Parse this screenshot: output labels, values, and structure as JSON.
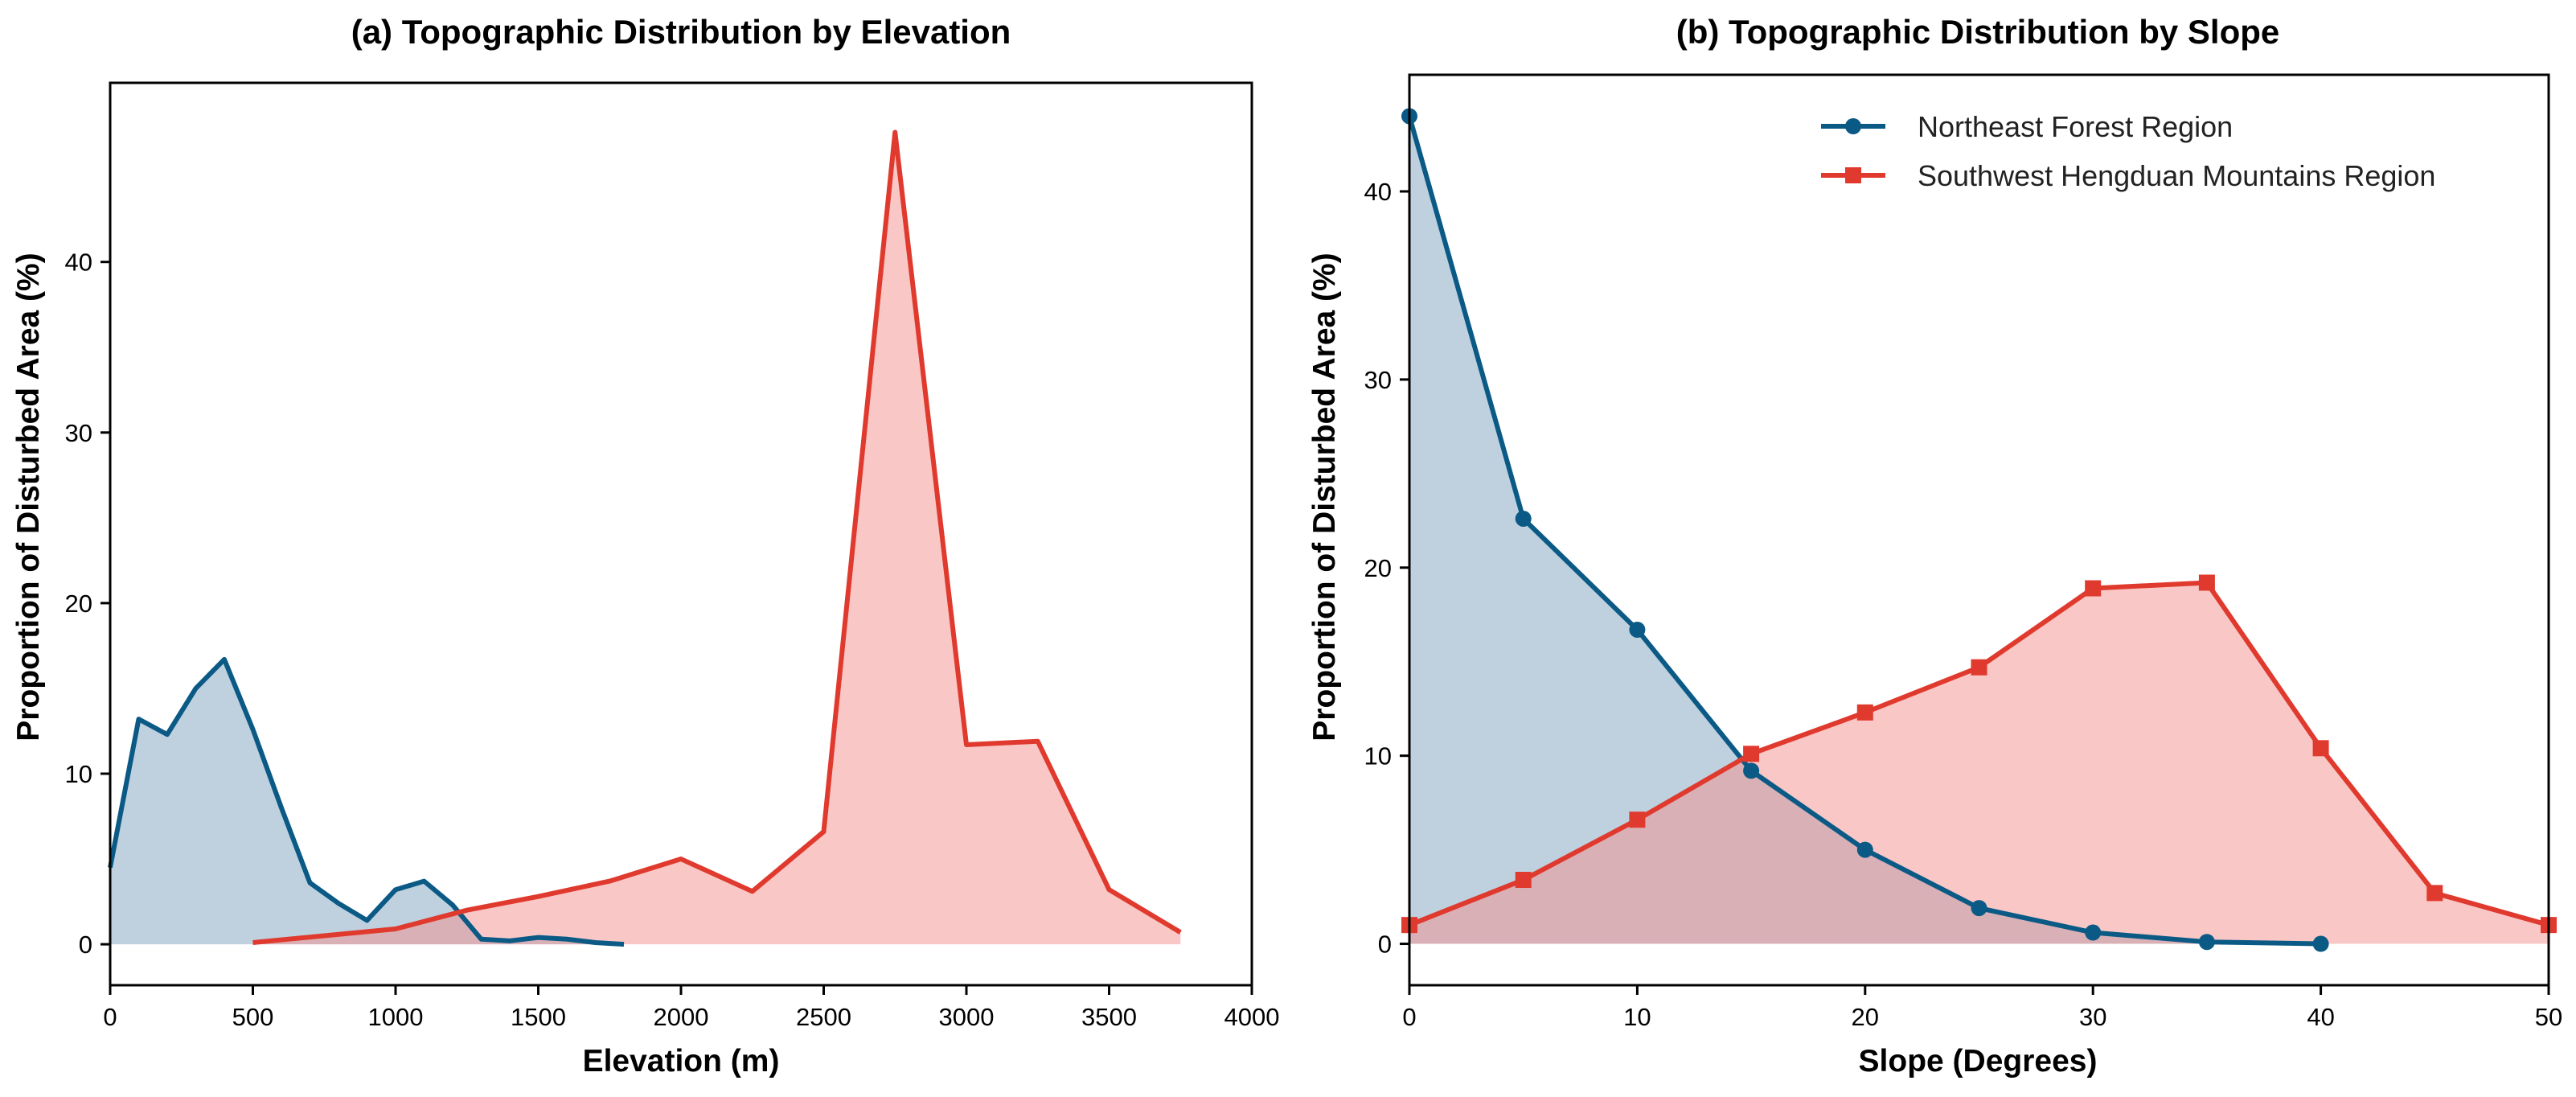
{
  "colors": {
    "northeast": "#0b5a86",
    "southwest": "#e03a2e",
    "northeast_fill": "#7fa4bf",
    "southwest_fill": "#f4908d"
  },
  "chart_data": [
    {
      "type": "area",
      "title": "(a) Topographic Distribution by Elevation",
      "xlabel": "Elevation (m)",
      "ylabel": "Proportion of Disturbed Area (%)",
      "xlim": [
        0,
        4000
      ],
      "ylim": [
        -2.4,
        50.5
      ],
      "xticks": [
        0,
        500,
        1000,
        1500,
        2000,
        2500,
        3000,
        3500,
        4000
      ],
      "yticks": [
        0,
        10,
        20,
        30,
        40
      ],
      "grid": false,
      "series": [
        {
          "name": "Northeast Forest Region",
          "color": "#0b5a86",
          "fill": "#7fa4bf",
          "marker": "none",
          "x": [
            0,
            100,
            200,
            300,
            400,
            500,
            600,
            700,
            800,
            900,
            1000,
            1100,
            1200,
            1300,
            1400,
            1500,
            1600,
            1700,
            1800
          ],
          "y": [
            4.5,
            13.2,
            12.3,
            15.0,
            16.7,
            12.6,
            8.0,
            3.6,
            2.4,
            1.4,
            3.2,
            3.7,
            2.3,
            0.3,
            0.2,
            0.4,
            0.3,
            0.1,
            0.0
          ]
        },
        {
          "name": "Southwest Hengduan Mountains Region",
          "color": "#e03a2e",
          "fill": "#f4908d",
          "marker": "none",
          "x": [
            500,
            750,
            1000,
            1250,
            1500,
            1750,
            2000,
            2250,
            2500,
            2750,
            3000,
            3250,
            3500,
            3750
          ],
          "y": [
            0.1,
            0.5,
            0.9,
            2.0,
            2.8,
            3.7,
            5.0,
            3.1,
            6.6,
            47.6,
            11.7,
            11.9,
            3.2,
            0.7
          ]
        }
      ]
    },
    {
      "type": "area",
      "title": "(b) Topographic Distribution by Slope",
      "xlabel": "Slope (Degrees)",
      "ylabel": "Proportion of Disturbed Area (%)",
      "xlim": [
        0,
        50
      ],
      "ylim": [
        -2.2,
        46.2
      ],
      "xticks": [
        0,
        10,
        20,
        30,
        40,
        50
      ],
      "yticks": [
        0,
        10,
        20,
        30,
        40
      ],
      "grid": false,
      "legend": "top-right",
      "series": [
        {
          "name": "Northeast Forest Region",
          "color": "#0b5a86",
          "fill": "#7fa4bf",
          "marker": "circle",
          "x": [
            0,
            5,
            10,
            15,
            20,
            25,
            30,
            35,
            40
          ],
          "y": [
            44.0,
            22.6,
            16.7,
            9.2,
            5.0,
            1.9,
            0.6,
            0.1,
            0.0
          ]
        },
        {
          "name": "Southwest Hengduan Mountains Region",
          "color": "#e03a2e",
          "fill": "#f4908d",
          "marker": "square",
          "x": [
            0,
            5,
            10,
            15,
            20,
            25,
            30,
            35,
            40,
            45,
            50
          ],
          "y": [
            1.0,
            3.4,
            6.6,
            10.1,
            12.3,
            14.7,
            18.9,
            19.2,
            10.4,
            2.7,
            1.0
          ]
        }
      ]
    }
  ]
}
